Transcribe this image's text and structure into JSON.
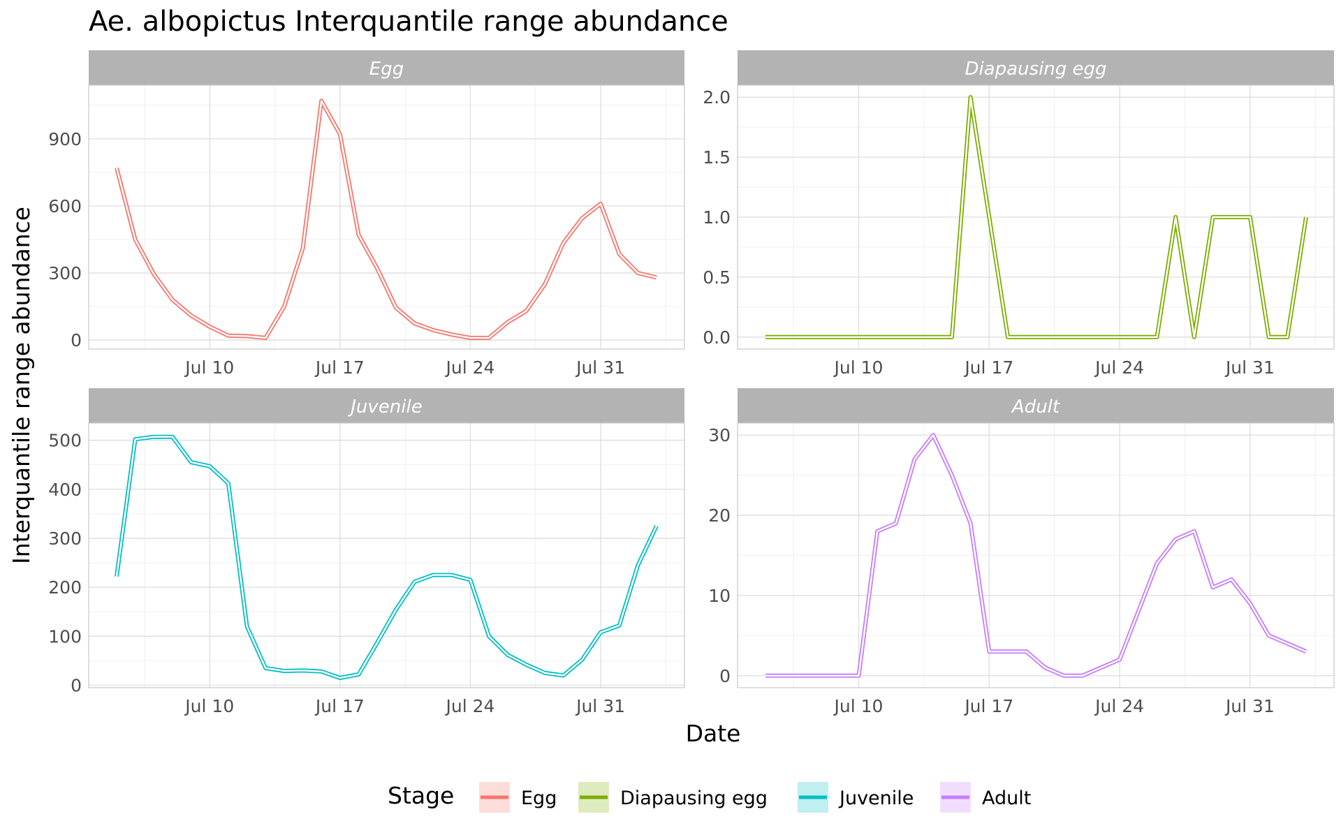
{
  "chart_data": {
    "type": "line",
    "title": "Ae. albopictus Interquantile range abundance",
    "xlabel": "Date",
    "ylabel": "Interquantile range abundance",
    "x_start_day": 5,
    "x_end_day": 35,
    "x_ticks": [
      {
        "day": 10,
        "label": "Jul 10"
      },
      {
        "day": 17,
        "label": "Jul 17"
      },
      {
        "day": 24,
        "label": "Jul 24"
      },
      {
        "day": 31,
        "label": "Jul 31"
      }
    ],
    "legend": {
      "title": "Stage",
      "position": "bottom",
      "items": [
        {
          "label": "Egg",
          "color": "#F8766D"
        },
        {
          "label": "Diapausing egg",
          "color": "#7CAE00"
        },
        {
          "label": "Juvenile",
          "color": "#00BFC4"
        },
        {
          "label": "Adult",
          "color": "#C77CFF"
        }
      ]
    },
    "panels": [
      {
        "name": "Egg",
        "color": "#F8766D",
        "ylim": [
          -40,
          1140
        ],
        "y_ticks": [
          0,
          300,
          600,
          900
        ],
        "y_tick_labels": [
          "0",
          "300",
          "600",
          "900"
        ],
        "days": [
          5,
          6,
          7,
          8,
          9,
          10,
          11,
          12,
          13,
          14,
          15,
          16,
          17,
          18,
          19,
          20,
          21,
          22,
          23,
          24,
          25,
          26,
          27,
          28,
          29,
          30,
          31,
          32,
          33,
          34
        ],
        "values": [
          770,
          450,
          295,
          180,
          110,
          60,
          20,
          18,
          10,
          150,
          410,
          1070,
          920,
          470,
          320,
          145,
          75,
          45,
          25,
          10,
          10,
          80,
          130,
          250,
          435,
          545,
          610,
          385,
          300,
          280
        ]
      },
      {
        "name": "Diapausing egg",
        "color": "#7CAE00",
        "ylim": [
          -0.1,
          2.1
        ],
        "y_ticks": [
          0,
          0.5,
          1,
          1.5,
          2
        ],
        "y_tick_labels": [
          "0.0",
          "0.5",
          "1.0",
          "1.5",
          "2.0"
        ],
        "days": [
          5,
          6,
          7,
          8,
          9,
          10,
          11,
          12,
          13,
          14,
          15,
          16,
          17,
          18,
          19,
          20,
          21,
          22,
          23,
          24,
          25,
          26,
          27,
          28,
          29,
          30,
          31,
          32,
          33,
          34
        ],
        "values": [
          0,
          0,
          0,
          0,
          0,
          0,
          0,
          0,
          0,
          0,
          0,
          2,
          1,
          0,
          0,
          0,
          0,
          0,
          0,
          0,
          0,
          0,
          1,
          0,
          1,
          1,
          1,
          0,
          0,
          1
        ]
      },
      {
        "name": "Juvenile",
        "color": "#00BFC4",
        "ylim": [
          -5,
          535
        ],
        "y_ticks": [
          0,
          100,
          200,
          300,
          400,
          500
        ],
        "y_tick_labels": [
          "0",
          "100",
          "200",
          "300",
          "400",
          "500"
        ],
        "days": [
          5,
          6,
          7,
          8,
          9,
          10,
          11,
          12,
          13,
          14,
          15,
          16,
          17,
          18,
          19,
          20,
          21,
          22,
          23,
          24,
          25,
          26,
          27,
          28,
          29,
          30,
          31,
          32,
          33,
          34
        ],
        "values": [
          222,
          502,
          507,
          507,
          455,
          447,
          412,
          120,
          35,
          29,
          30,
          28,
          15,
          22,
          87,
          154,
          211,
          225,
          225,
          215,
          100,
          62,
          42,
          25,
          20,
          52,
          108,
          122,
          245,
          325
        ]
      },
      {
        "name": "Adult",
        "color": "#C77CFF",
        "ylim": [
          -1.5,
          31.5
        ],
        "y_ticks": [
          0,
          10,
          20,
          30
        ],
        "y_tick_labels": [
          "0",
          "10",
          "20",
          "30"
        ],
        "days": [
          5,
          6,
          7,
          8,
          9,
          10,
          11,
          12,
          13,
          14,
          15,
          16,
          17,
          18,
          19,
          20,
          21,
          22,
          23,
          24,
          25,
          26,
          27,
          28,
          29,
          30,
          31,
          32,
          33,
          34
        ],
        "values": [
          0,
          0,
          0,
          0,
          0,
          0,
          18,
          19,
          27,
          30,
          25,
          19,
          3,
          3,
          3,
          1,
          0,
          0,
          1,
          2,
          8,
          14,
          17,
          18,
          11,
          12,
          9,
          5,
          4,
          3
        ]
      }
    ]
  }
}
